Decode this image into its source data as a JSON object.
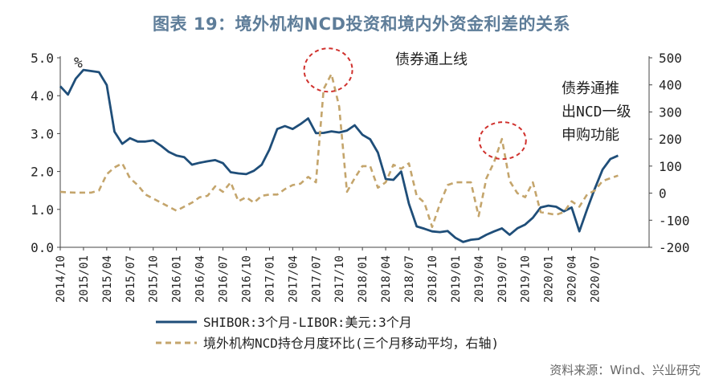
{
  "chart_data": {
    "type": "line",
    "title": "图表 19：境外机构NCD投资和境内外资金利差的关系",
    "source": "资料来源：Wind、兴业研究",
    "left_axis": {
      "unit": "%",
      "min": 0,
      "max": 5,
      "ticks": [
        "0.0",
        "1.0",
        "2.0",
        "3.0",
        "4.0",
        "5.0"
      ]
    },
    "right_axis": {
      "min": -200,
      "max": 500,
      "ticks": [
        "-200",
        "-100",
        "0",
        "100",
        "200",
        "300",
        "400",
        "500"
      ]
    },
    "x_range": [
      0,
      76
    ],
    "x_ticks": [
      {
        "x": 0,
        "label": "2014/10"
      },
      {
        "x": 3,
        "label": "2015/01"
      },
      {
        "x": 6,
        "label": "2015/04"
      },
      {
        "x": 9,
        "label": "2015/07"
      },
      {
        "x": 12,
        "label": "2015/10"
      },
      {
        "x": 15,
        "label": "2016/01"
      },
      {
        "x": 18,
        "label": "2016/04"
      },
      {
        "x": 21,
        "label": "2016/07"
      },
      {
        "x": 24,
        "label": "2016/10"
      },
      {
        "x": 27,
        "label": "2017/01"
      },
      {
        "x": 30,
        "label": "2017/04"
      },
      {
        "x": 33,
        "label": "2017/07"
      },
      {
        "x": 36,
        "label": "2017/10"
      },
      {
        "x": 39,
        "label": "2018/01"
      },
      {
        "x": 42,
        "label": "2018/04"
      },
      {
        "x": 45,
        "label": "2018/07"
      },
      {
        "x": 48,
        "label": "2018/10"
      },
      {
        "x": 51,
        "label": "2019/01"
      },
      {
        "x": 54,
        "label": "2019/04"
      },
      {
        "x": 57,
        "label": "2019/07"
      },
      {
        "x": 60,
        "label": "2019/10"
      },
      {
        "x": 63,
        "label": "2020/01"
      },
      {
        "x": 66,
        "label": "2020/04"
      },
      {
        "x": 69,
        "label": "2020/07"
      }
    ],
    "series": [
      {
        "name": "SHIBOR:3个月-LIBOR:美元:3个月",
        "axis": "left",
        "color": "#1f4e79",
        "style": "solid",
        "x": [
          0,
          1,
          2,
          3,
          4,
          5,
          6,
          7,
          8,
          9,
          10,
          11,
          12,
          13,
          14,
          15,
          16,
          17,
          18,
          19,
          20,
          21,
          22,
          23,
          24,
          25,
          26,
          27,
          28,
          29,
          30,
          31,
          32,
          33,
          34,
          35,
          36,
          37,
          38,
          39,
          40,
          41,
          42,
          43,
          44,
          45,
          46,
          47,
          48,
          49,
          50,
          51,
          52,
          53,
          54,
          55,
          56,
          57,
          58,
          59,
          60,
          61,
          62,
          63,
          64,
          65,
          66,
          67,
          68,
          69,
          70,
          71,
          72
        ],
        "values": [
          4.25,
          4.03,
          4.45,
          4.68,
          4.65,
          4.62,
          4.28,
          3.05,
          2.73,
          2.88,
          2.79,
          2.79,
          2.82,
          2.68,
          2.52,
          2.42,
          2.38,
          2.18,
          2.23,
          2.27,
          2.3,
          2.22,
          1.98,
          1.95,
          1.93,
          2.02,
          2.18,
          2.58,
          3.12,
          3.2,
          3.12,
          3.25,
          3.4,
          3.01,
          3.02,
          3.06,
          3.03,
          3.08,
          3.22,
          2.97,
          2.85,
          2.5,
          1.8,
          1.78,
          2.0,
          1.15,
          0.55,
          0.49,
          0.42,
          0.4,
          0.43,
          0.25,
          0.14,
          0.2,
          0.22,
          0.33,
          0.42,
          0.5,
          0.33,
          0.5,
          0.6,
          0.78,
          1.05,
          1.1,
          1.07,
          0.95,
          1.05,
          0.42,
          1.0,
          1.55,
          2.05,
          2.33,
          2.42
        ]
      },
      {
        "name": "境外机构NCD持仓月度环比(三个月移动平均，右轴)",
        "axis": "right",
        "color": "#c4a56c",
        "style": "dashed",
        "x": [
          0,
          1,
          2,
          3,
          4,
          5,
          6,
          7,
          8,
          9,
          10,
          11,
          12,
          13,
          14,
          15,
          16,
          17,
          18,
          19,
          20,
          21,
          22,
          23,
          24,
          25,
          26,
          27,
          28,
          29,
          30,
          31,
          32,
          33,
          34,
          35,
          36,
          37,
          38,
          39,
          40,
          41,
          42,
          43,
          44,
          45,
          46,
          47,
          48,
          49,
          50,
          51,
          52,
          53,
          54,
          55,
          56,
          57,
          58,
          59,
          60,
          61,
          62,
          63,
          64,
          65,
          66,
          67,
          68,
          69,
          70,
          71,
          72
        ],
        "values": [
          5,
          3,
          2,
          2,
          2,
          10,
          70,
          95,
          110,
          55,
          30,
          -5,
          -20,
          -35,
          -50,
          -65,
          -50,
          -35,
          -15,
          -10,
          25,
          5,
          40,
          -30,
          -15,
          -35,
          -10,
          -5,
          -5,
          15,
          30,
          35,
          60,
          40,
          385,
          440,
          320,
          5,
          55,
          100,
          100,
          20,
          40,
          105,
          90,
          110,
          -10,
          -35,
          -125,
          -40,
          30,
          40,
          40,
          40,
          -85,
          55,
          115,
          200,
          45,
          0,
          -15,
          40,
          -70,
          -75,
          -80,
          -70,
          -30,
          -50,
          -5,
          10,
          45,
          55,
          65
        ]
      }
    ],
    "annotations": [
      {
        "lines": [
          "债券通上线"
        ]
      },
      {
        "lines": [
          "债券通推",
          "出NCD一级",
          "申购功能"
        ]
      }
    ]
  }
}
